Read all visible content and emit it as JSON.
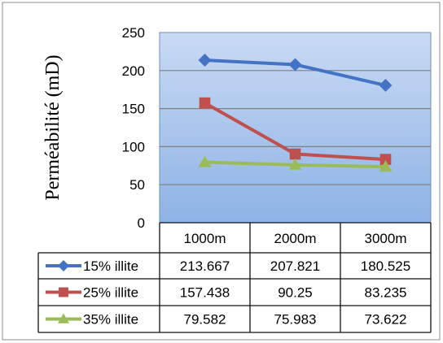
{
  "chart_data": {
    "type": "line",
    "title": "",
    "xlabel": "",
    "ylabel": "Perméabilité (mD)",
    "ylim": [
      0,
      250
    ],
    "yticks": [
      0,
      50,
      100,
      150,
      200,
      250
    ],
    "categories": [
      "1000m",
      "2000m",
      "3000m"
    ],
    "grid": true,
    "legend": "data-table",
    "series": [
      {
        "name": "15% illite",
        "color": "#4472C4",
        "marker": "diamond",
        "values": [
          213.667,
          207.821,
          180.525
        ],
        "labels": [
          "213.667",
          "207.821",
          "180.525"
        ]
      },
      {
        "name": "25% illite",
        "color": "#C0504D",
        "marker": "square",
        "values": [
          157.438,
          90.25,
          83.235
        ],
        "labels": [
          "157.438",
          "90.25",
          "83.235"
        ]
      },
      {
        "name": "35% illite",
        "color": "#9BBB59",
        "marker": "triangle",
        "values": [
          79.582,
          75.983,
          73.622
        ],
        "labels": [
          "79.582",
          "75.983",
          "73.622"
        ]
      }
    ]
  }
}
